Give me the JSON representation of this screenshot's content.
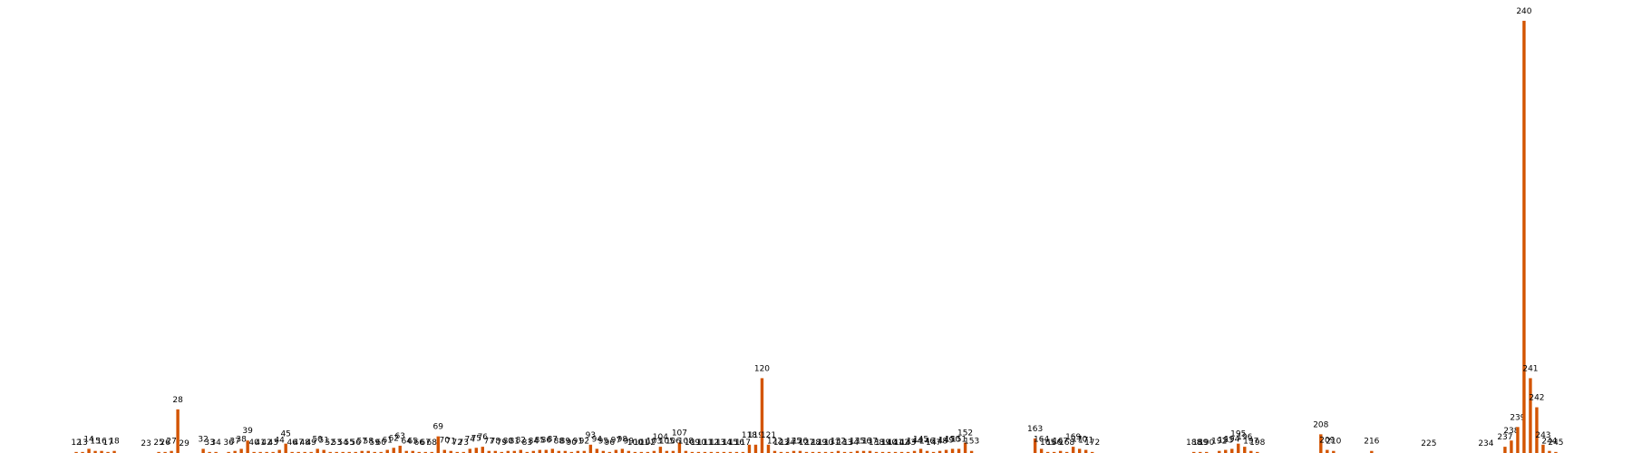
{
  "chart_data": {
    "type": "bar",
    "color": "#d35400",
    "xlim": [
      0,
      257
    ],
    "ylim": [
      0,
      436
    ],
    "x": [
      12,
      13,
      14,
      15,
      16,
      17,
      18,
      23,
      25,
      26,
      27,
      28,
      29,
      32,
      33,
      34,
      36,
      37,
      38,
      39,
      40,
      41,
      42,
      43,
      44,
      45,
      46,
      47,
      48,
      49,
      50,
      51,
      52,
      53,
      54,
      55,
      56,
      57,
      58,
      59,
      60,
      61,
      62,
      63,
      64,
      65,
      66,
      67,
      68,
      69,
      70,
      71,
      72,
      73,
      74,
      75,
      76,
      77,
      78,
      79,
      80,
      81,
      82,
      83,
      84,
      85,
      86,
      87,
      88,
      89,
      90,
      91,
      92,
      93,
      94,
      95,
      96,
      97,
      98,
      99,
      100,
      101,
      102,
      103,
      104,
      105,
      106,
      107,
      108,
      109,
      110,
      111,
      112,
      113,
      114,
      115,
      116,
      117,
      118,
      119,
      120,
      121,
      122,
      123,
      124,
      125,
      126,
      127,
      128,
      129,
      130,
      131,
      132,
      133,
      134,
      135,
      136,
      137,
      138,
      139,
      140,
      141,
      142,
      143,
      144,
      145,
      146,
      147,
      148,
      149,
      150,
      151,
      152,
      153,
      163,
      164,
      165,
      166,
      167,
      168,
      169,
      170,
      171,
      172,
      188,
      189,
      190,
      192,
      193,
      194,
      195,
      196,
      197,
      198,
      208,
      209,
      210,
      216,
      225,
      234,
      237,
      238,
      239,
      240,
      241,
      242,
      243,
      244,
      245
    ],
    "values": [
      1,
      1,
      4,
      2,
      2,
      1,
      2,
      0,
      1,
      1,
      2,
      42,
      0,
      4,
      1,
      1,
      1,
      2,
      4,
      12,
      1,
      1,
      1,
      1,
      3,
      9,
      1,
      1,
      1,
      1,
      4,
      3,
      1,
      1,
      1,
      1,
      1,
      2,
      2,
      1,
      1,
      3,
      5,
      7,
      2,
      2,
      1,
      1,
      1,
      16,
      3,
      2,
      1,
      1,
      4,
      5,
      6,
      2,
      2,
      1,
      2,
      2,
      3,
      1,
      2,
      3,
      3,
      4,
      2,
      2,
      1,
      2,
      2,
      8,
      4,
      2,
      1,
      3,
      4,
      2,
      1,
      1,
      1,
      2,
      6,
      2,
      2,
      10,
      2,
      1,
      1,
      1,
      1,
      1,
      1,
      1,
      1,
      1,
      8,
      8,
      72,
      8,
      2,
      1,
      1,
      2,
      2,
      1,
      1,
      1,
      1,
      1,
      2,
      1,
      1,
      2,
      2,
      2,
      1,
      1,
      1,
      1,
      1,
      1,
      2,
      4,
      2,
      1,
      2,
      3,
      4,
      4,
      10,
      2,
      14,
      4,
      1,
      1,
      2,
      1,
      6,
      4,
      3,
      1,
      1,
      1,
      1,
      2,
      3,
      4,
      9,
      6,
      2,
      1,
      18,
      3,
      2,
      2,
      0,
      0,
      6,
      12,
      25,
      416,
      72,
      44,
      8,
      2,
      1
    ]
  }
}
